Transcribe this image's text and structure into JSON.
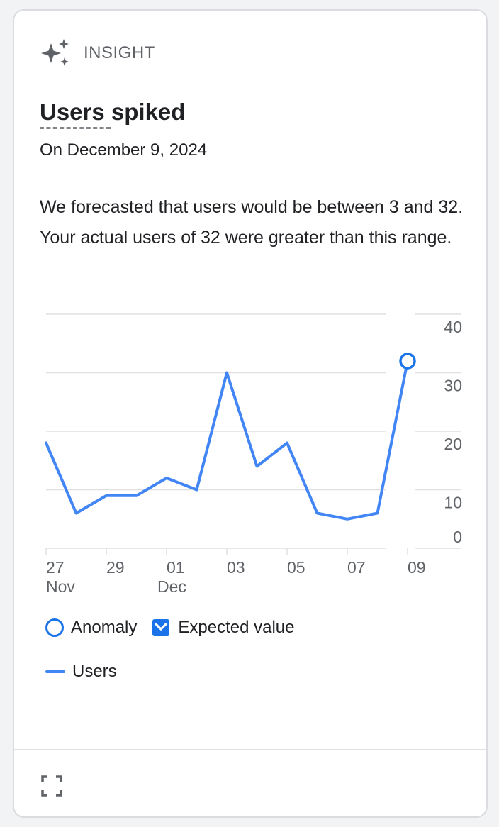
{
  "header": {
    "label": "INSIGHT",
    "icon": "sparkle-icon"
  },
  "title": "Users spiked",
  "date": "On December 9, 2024",
  "description": "We forecasted that users would be between 3 and 32. Your actual users of 32 were greater than this range.",
  "legend": {
    "anomaly": "Anomaly",
    "expected": "Expected value",
    "users": "Users"
  },
  "footer": {
    "expand_icon": "fullscreen-icon"
  },
  "colors": {
    "line": "#4285f4",
    "accent": "#1a73e8",
    "grid": "#e0e0e0",
    "text": "#202124",
    "muted": "#5f6368"
  },
  "chart_data": {
    "type": "line",
    "x": [
      "27",
      "28",
      "29",
      "30",
      "01",
      "02",
      "03",
      "04",
      "05",
      "06",
      "07",
      "08",
      "09"
    ],
    "x_tick_labels": [
      "27",
      "29",
      "01",
      "03",
      "05",
      "07",
      "09"
    ],
    "x_sub_labels": {
      "27": "Nov",
      "01": "Dec"
    },
    "y_ticks": [
      0,
      10,
      20,
      30,
      40
    ],
    "ylim": [
      0,
      40
    ],
    "series": [
      {
        "name": "Users",
        "values": [
          18,
          6,
          9,
          9,
          12,
          10,
          30,
          14,
          18,
          6,
          5,
          6,
          32
        ]
      }
    ],
    "anomaly_index": 12,
    "grid": true
  }
}
